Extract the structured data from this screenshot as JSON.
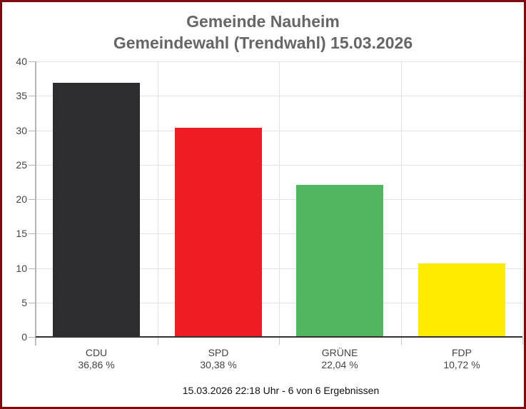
{
  "chart_data": {
    "type": "bar",
    "title": "Gemeinde Nauheim",
    "subtitle": "Gemeindewahl (Trendwahl) 15.03.2026",
    "categories": [
      "CDU",
      "SPD",
      "GRÜNE",
      "FDP"
    ],
    "values": [
      36.86,
      30.38,
      22.04,
      10.72
    ],
    "value_labels": [
      "36,86 %",
      "30,38 %",
      "22,04 %",
      "10,72 %"
    ],
    "colors": [
      "#2d2d2f",
      "#ee1c24",
      "#52b560",
      "#ffeb00"
    ],
    "xlabel": "",
    "ylabel": "",
    "ylim": [
      0,
      40
    ],
    "yticks": [
      0,
      5,
      10,
      15,
      20,
      25,
      30,
      35,
      40
    ],
    "grid": true,
    "legend": "none",
    "footer": "15.03.2026 22:18 Uhr - 6 von 6 Ergebnissen"
  },
  "header": {
    "title": "Gemeinde Nauheim",
    "subtitle": "Gemeindewahl (Trendwahl) 15.03.2026"
  },
  "yaxis": {
    "labels": [
      "0",
      "5",
      "10",
      "15",
      "20",
      "25",
      "30",
      "35",
      "40"
    ]
  },
  "bars": [
    {
      "party": "CDU",
      "percent": "36,86 %"
    },
    {
      "party": "SPD",
      "percent": "30,38 %"
    },
    {
      "party": "GRÜNE",
      "percent": "22,04 %"
    },
    {
      "party": "FDP",
      "percent": "10,72 %"
    }
  ],
  "footer": {
    "text": "15.03.2026 22:18 Uhr - 6 von 6 Ergebnissen"
  }
}
